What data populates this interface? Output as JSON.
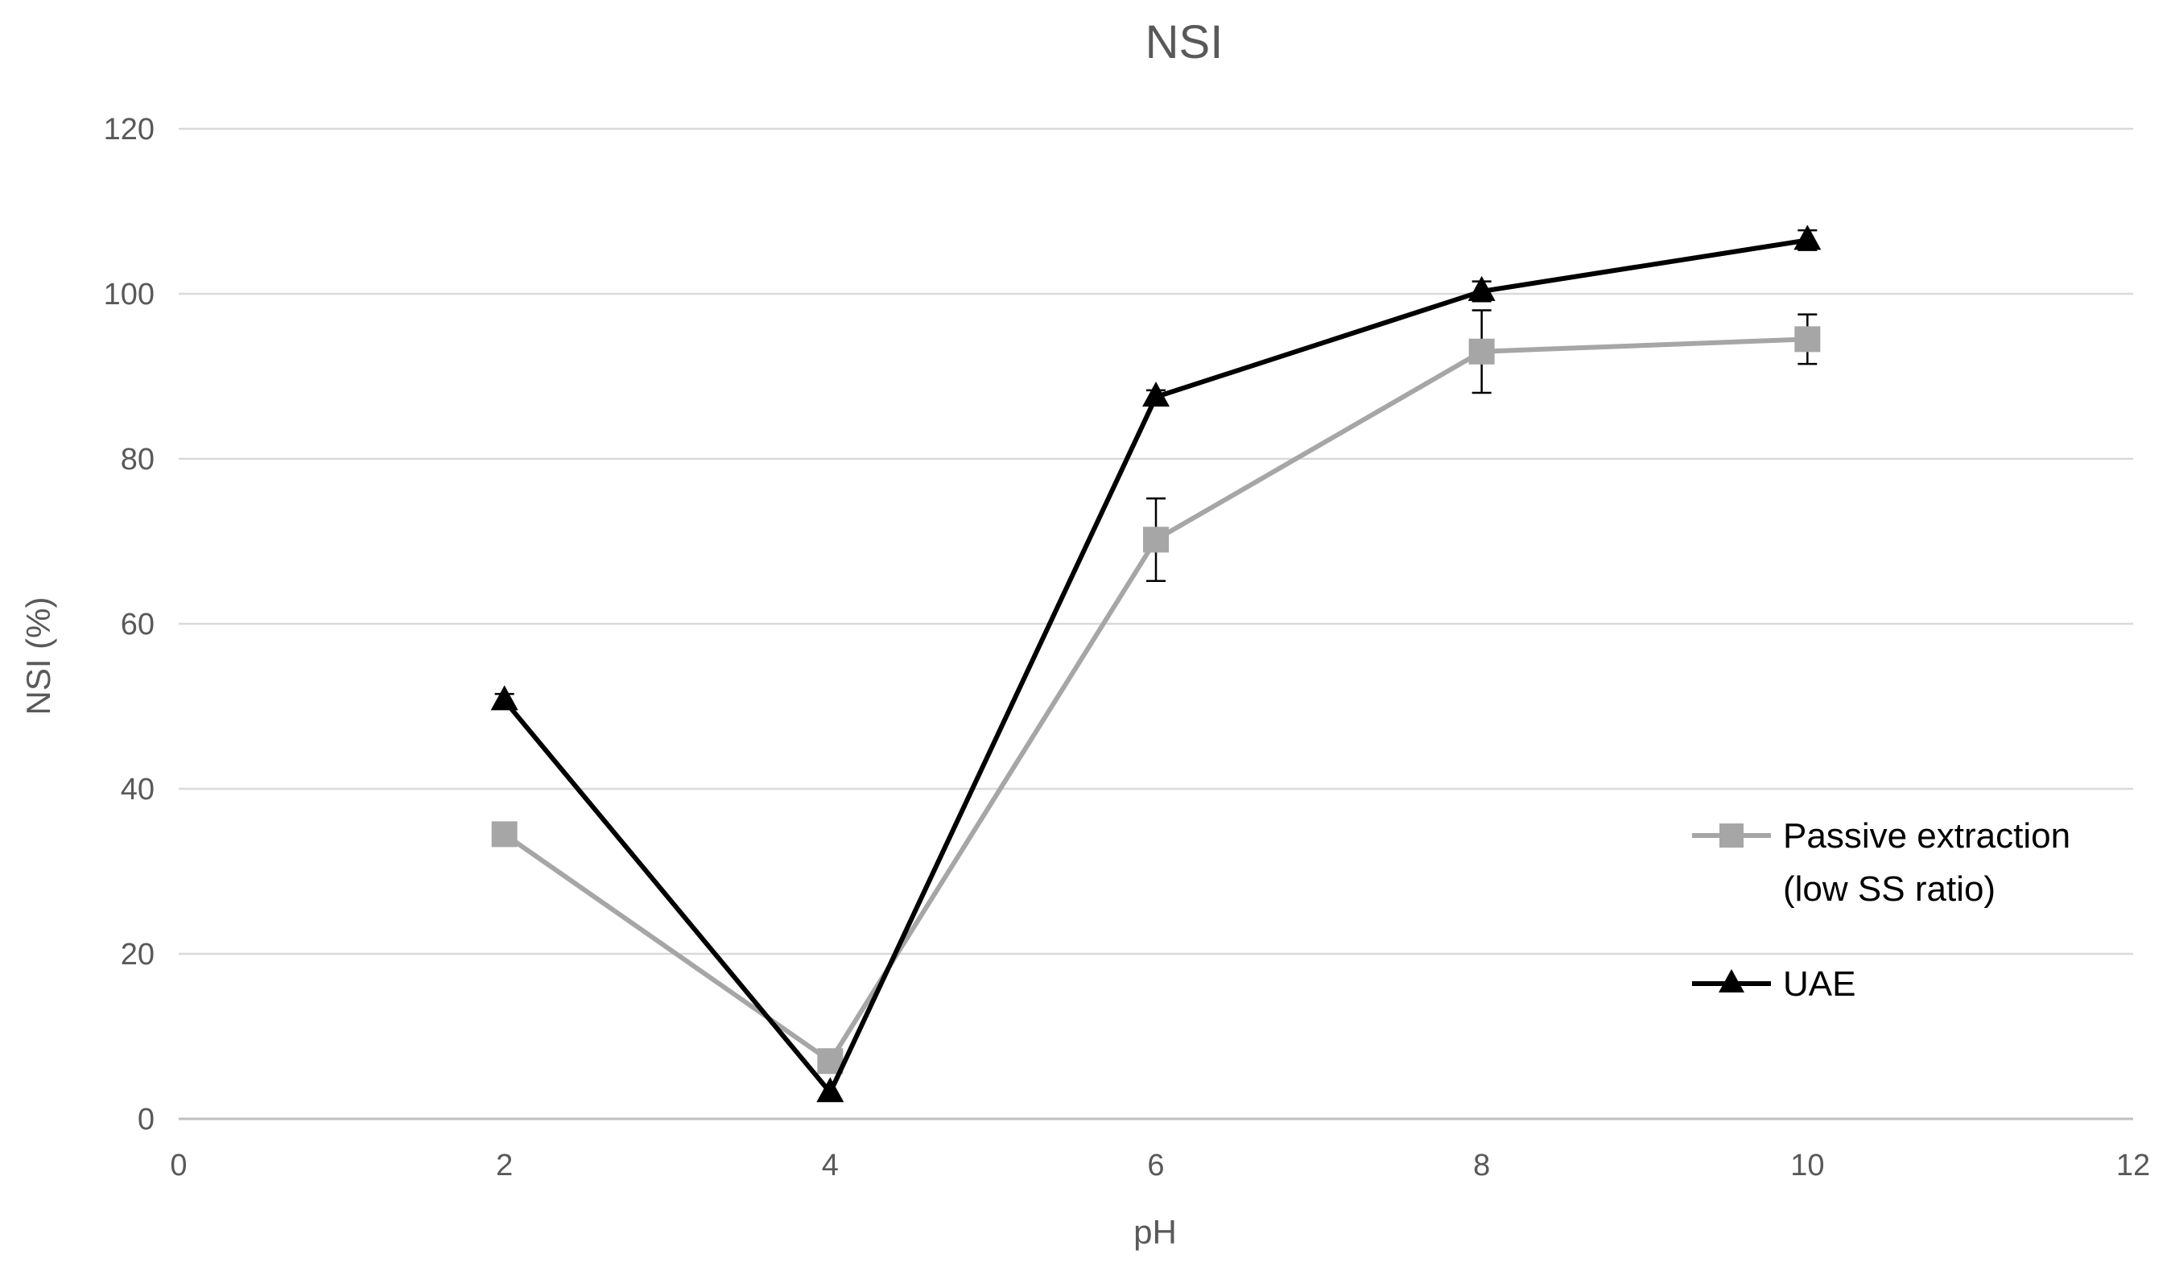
{
  "chart_data": {
    "type": "line",
    "title": "NSI",
    "xlabel": "pH",
    "ylabel": "NSI (%)",
    "xlim": [
      0,
      12
    ],
    "ylim": [
      0,
      120
    ],
    "xticks": [
      0,
      2,
      4,
      6,
      8,
      10,
      12
    ],
    "yticks": [
      0,
      20,
      40,
      60,
      80,
      100,
      120
    ],
    "grid": "horizontal",
    "legend_position": "right",
    "series": [
      {
        "name": "Passive extraction (low SS ratio)",
        "legend_lines": [
          "Passive extraction",
          "(low SS ratio)"
        ],
        "color": "#a6a6a6",
        "marker": "square",
        "x": [
          2,
          4,
          6,
          8,
          10
        ],
        "y": [
          34.5,
          7,
          70.2,
          93,
          94.5
        ],
        "error": [
          0,
          0,
          5,
          5,
          3
        ]
      },
      {
        "name": "UAE",
        "legend_lines": [
          "UAE"
        ],
        "color": "#000000",
        "marker": "triangle",
        "x": [
          2,
          4,
          6,
          8,
          10
        ],
        "y": [
          50.7,
          3.2,
          87.5,
          100.3,
          106.5
        ],
        "error": [
          0.8,
          0,
          0.8,
          1.2,
          1.2
        ]
      }
    ]
  }
}
